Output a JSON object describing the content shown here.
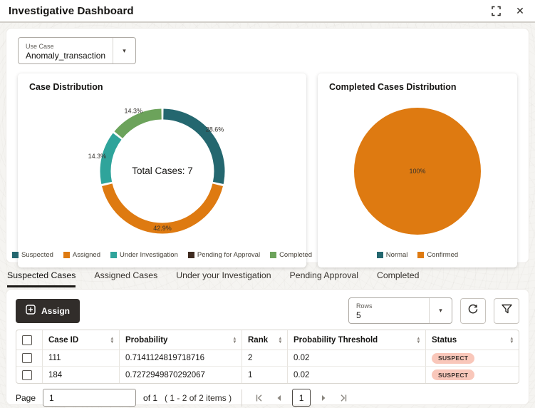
{
  "header": {
    "title": "Investigative Dashboard"
  },
  "icons": {
    "dropdown": "▾",
    "sort_up": "▴",
    "sort_down": "▾",
    "close": "✕"
  },
  "use_case": {
    "label": "Use Case",
    "value": "Anomaly_transaction"
  },
  "chart_data": [
    {
      "type": "donut",
      "title": "Case Distribution",
      "center_label": "Total Cases: 7",
      "total": 7,
      "legend_position": "bottom",
      "slices": [
        {
          "label": "Suspected",
          "value": 2,
          "pct": "28.6%",
          "color": "#24676f"
        },
        {
          "label": "Assigned",
          "value": 3,
          "pct": "42.9%",
          "color": "#de7a11",
          "label_inside": true
        },
        {
          "label": "Under Investigation",
          "value": 1,
          "pct": "14.3%",
          "color": "#2fa49b"
        },
        {
          "label": "Pending for Approval",
          "value": 0,
          "pct": "",
          "color": "#3f2b20"
        },
        {
          "label": "Completed",
          "value": 1,
          "pct": "14.3%",
          "color": "#6ca35b"
        }
      ]
    },
    {
      "type": "pie",
      "title": "Completed Cases Distribution",
      "legend_position": "bottom",
      "slices": [
        {
          "label": "Normal",
          "value": 0,
          "pct": "",
          "color": "#24676f"
        },
        {
          "label": "Confirmed",
          "value": 1,
          "pct": "100%",
          "color": "#de7a11"
        }
      ]
    }
  ],
  "tabs": [
    {
      "label": "Suspected Cases",
      "active": true
    },
    {
      "label": "Assigned Cases",
      "active": false
    },
    {
      "label": "Under your Investigation",
      "active": false
    },
    {
      "label": "Pending Approval",
      "active": false
    },
    {
      "label": "Completed",
      "active": false
    }
  ],
  "table_section": {
    "toolbar": {
      "assign_label": "Assign",
      "rows_label": "Rows",
      "rows_value": "5"
    },
    "columns": {
      "case_id": "Case ID",
      "probability": "Probability",
      "rank": "Rank",
      "threshold": "Probability Threshold",
      "status": "Status"
    },
    "rows": [
      {
        "case_id": "111",
        "probability": "0.7141124819718716",
        "rank": "2",
        "threshold": "0.02",
        "status": "SUSPECT"
      },
      {
        "case_id": "184",
        "probability": "0.7272949870292067",
        "rank": "1",
        "threshold": "0.02",
        "status": "SUSPECT"
      }
    ]
  },
  "pagination": {
    "page_label": "Page",
    "page_value": "1",
    "of_label": "of 1",
    "items_label": "( 1 - 2 of 2 items )",
    "current_page": "1"
  },
  "colors": {
    "suspect_badge_bg": "#f9c7ba",
    "suspect_badge_text": "#3d332e",
    "assign_button_bg": "#312d2a",
    "active_tab_underline": "#1b1916"
  }
}
